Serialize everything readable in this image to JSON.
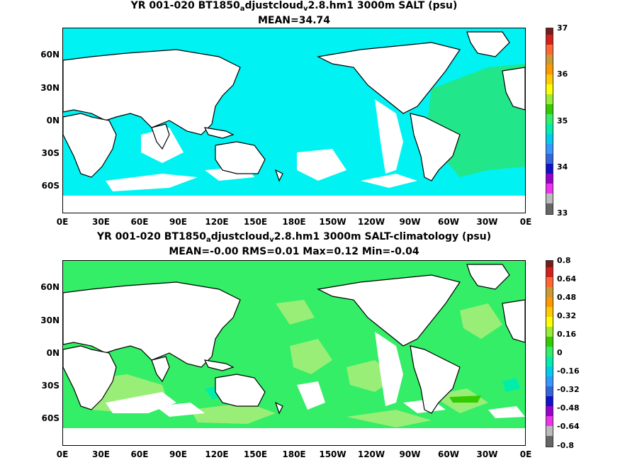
{
  "panel1": {
    "title_pre": "YR 001-020 BT1850",
    "title_sub1": "a",
    "title_mid": "djustcloud",
    "title_sub2": "v",
    "title_post": "2.8.hm1 3000m SALT (psu)",
    "subtitle": "MEAN=34.74",
    "colorbar_ticks": [
      "37",
      "36",
      "35",
      "34",
      "33"
    ]
  },
  "panel2": {
    "title_pre": "YR 001-020 BT1850",
    "title_sub1": "a",
    "title_mid": "djustcloud",
    "title_sub2": "v",
    "title_post": "2.8.hm1 3000m SALT-climatology (psu)",
    "subtitle": "MEAN=-0.00   RMS=0.01   Max=0.12   Min=-0.04",
    "colorbar_ticks": [
      "0.8",
      "0.64",
      "0.48",
      "0.32",
      "0.16",
      "0",
      "-0.16",
      "-0.32",
      "-0.48",
      "-0.64",
      "-0.8"
    ]
  },
  "lat_ticks": [
    "60N",
    "30N",
    "0N",
    "30S",
    "60S"
  ],
  "lon_ticks": [
    "0E",
    "30E",
    "60E",
    "90E",
    "120E",
    "150E",
    "180E",
    "150W",
    "120W",
    "90W",
    "60W",
    "30W",
    "0E"
  ],
  "colors": {
    "salt_main": "#00f2f2",
    "salt_high": "#22e68a",
    "anomaly_main": "#33ee66",
    "anomaly_light": "#99ee77",
    "anomaly_teal": "#00eeaa",
    "land": "#ffffff"
  },
  "colorbar_colors": [
    "#7a1a1a",
    "#d4201a",
    "#ff6633",
    "#cc9933",
    "#ff9900",
    "#ffcc00",
    "#ffff00",
    "#99ee33",
    "#33cc00",
    "#33ee66",
    "#00eeaa",
    "#00ccee",
    "#3399ff",
    "#3366dd",
    "#1111cc",
    "#9900cc",
    "#ee33ee",
    "#bbbbbb",
    "#666666"
  ]
}
